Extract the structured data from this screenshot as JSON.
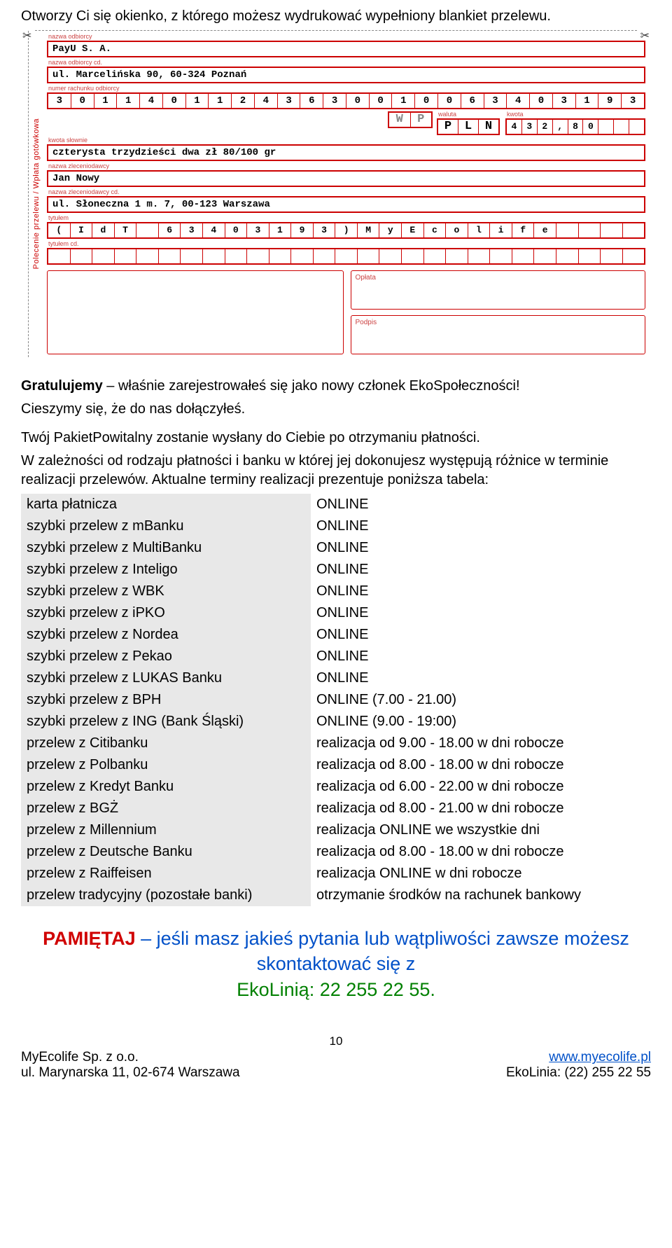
{
  "intro": "Otworzy Ci się okienko, z którego możesz wydrukować wypełniony blankiet przelewu.",
  "form": {
    "side_label": "Polecenie przelewu / Wpłata gotówkowa",
    "labels": {
      "odbiorca": "nazwa odbiorcy",
      "odbiorca_cd": "nazwa odbiorcy cd.",
      "rachunek_odb": "numer rachunku odbiorcy",
      "kwota_slownie": "kwota słownie",
      "zleceniodawca": "nazwa zleceniodawcy",
      "zleceniodawca_cd": "nazwa zleceniodawcy cd.",
      "tytulem": "tytułem",
      "tytulem_cd": "tytułem cd.",
      "waluta": "waluta",
      "kwota": "kwota",
      "oplata": "Opłata",
      "podpis": "Podpis"
    },
    "odbiorca": "PayU S. A.",
    "odbiorca_cd": "ul. Marcelińska 90, 60-324 Poznań",
    "rachunek": [
      "3",
      "0",
      "1",
      "1",
      "4",
      "0",
      "1",
      "1",
      "2",
      "4",
      "3",
      "6",
      "3",
      "0",
      "0",
      "1",
      "0",
      "0",
      "6",
      "3",
      "4",
      "0",
      "3",
      "1",
      "9",
      "3"
    ],
    "wp": [
      "W",
      "P"
    ],
    "waluta": [
      "P",
      "L",
      "N"
    ],
    "kwota": [
      "4",
      "3",
      "2",
      ",",
      "8",
      "0"
    ],
    "kwota_slownie": "czterysta trzydzieści dwa zł 80/100 gr",
    "zleceniodawca": "Jan Nowy",
    "zleceniodawca_cd": "ul. Słoneczna 1 m. 7, 00-123 Warszawa",
    "tytulem_chars": [
      "(",
      "I",
      "d",
      "T",
      " ",
      "6",
      "3",
      "4",
      "0",
      "3",
      "1",
      "9",
      "3",
      ")",
      "M",
      "y",
      "E",
      "c",
      "o",
      "l",
      "i",
      "f",
      "e"
    ]
  },
  "congrats_bold": "Gratulujemy",
  "congrats_rest": " – właśnie zarejestrowałeś się jako nowy członek EkoSpołeczności!",
  "line2": "Cieszymy się, że do nas dołączyłeś.",
  "line3": "Twój PakietPowitalny zostanie wysłany do Ciebie po otrzymaniu płatności.",
  "line4": "W zależności od rodzaju płatności i banku w której jej dokonujesz występują różnice w terminie realizacji przelewów. Aktualne terminy realizacji prezentuje poniższa tabela:",
  "rows": [
    {
      "k": "karta płatnicza",
      "v": "ONLINE"
    },
    {
      "k": "szybki przelew z mBanku",
      "v": "ONLINE"
    },
    {
      "k": "szybki przelew z MultiBanku",
      "v": "ONLINE"
    },
    {
      "k": "szybki przelew z Inteligo",
      "v": "ONLINE"
    },
    {
      "k": "szybki przelew z WBK",
      "v": "ONLINE"
    },
    {
      "k": "szybki przelew z iPKO",
      "v": "ONLINE"
    },
    {
      "k": "szybki przelew z Nordea",
      "v": "ONLINE"
    },
    {
      "k": "szybki przelew z Pekao",
      "v": "ONLINE"
    },
    {
      "k": "szybki przelew z LUKAS Banku",
      "v": "ONLINE"
    },
    {
      "k": "szybki przelew z BPH",
      "v": "ONLINE (7.00 - 21.00)"
    },
    {
      "k": "szybki przelew z ING (Bank Śląski)",
      "v": "ONLINE (9.00 - 19:00)"
    },
    {
      "k": "przelew z Citibanku",
      "v": "realizacja od 9.00 - 18.00 w dni robocze"
    },
    {
      "k": "przelew z Polbanku",
      "v": "realizacja od 8.00 - 18.00 w dni robocze"
    },
    {
      "k": "przelew z Kredyt Banku",
      "v": "realizacja od 6.00 - 22.00 w dni robocze"
    },
    {
      "k": "przelew z BGŻ",
      "v": "realizacja od 8.00 - 21.00 w dni robocze"
    },
    {
      "k": "przelew z Millennium",
      "v": "realizacja ONLINE we wszystkie dni"
    },
    {
      "k": "przelew z Deutsche Banku",
      "v": "realizacja od 8.00 - 18.00 w dni robocze"
    },
    {
      "k": "przelew z Raiffeisen",
      "v": "realizacja ONLINE w dni robocze"
    },
    {
      "k": "przelew tradycyjny (pozostałe banki)",
      "v": "otrzymanie środków na rachunek bankowy"
    }
  ],
  "remember": {
    "red": "PAMIĘTAJ",
    "blue1": " – jeśli masz jakieś pytania lub wątpliwości zawsze możesz skontaktować się z",
    "green": "EkoLinią: 22 255 22 55."
  },
  "page_number": "10",
  "footer": {
    "company": "MyEcolife Sp. z o.o.",
    "address": "ul. Marynarska 11, 02-674 Warszawa",
    "url": "www.myecolife.pl",
    "phone": "EkoLinia: (22) 255 22 55"
  }
}
